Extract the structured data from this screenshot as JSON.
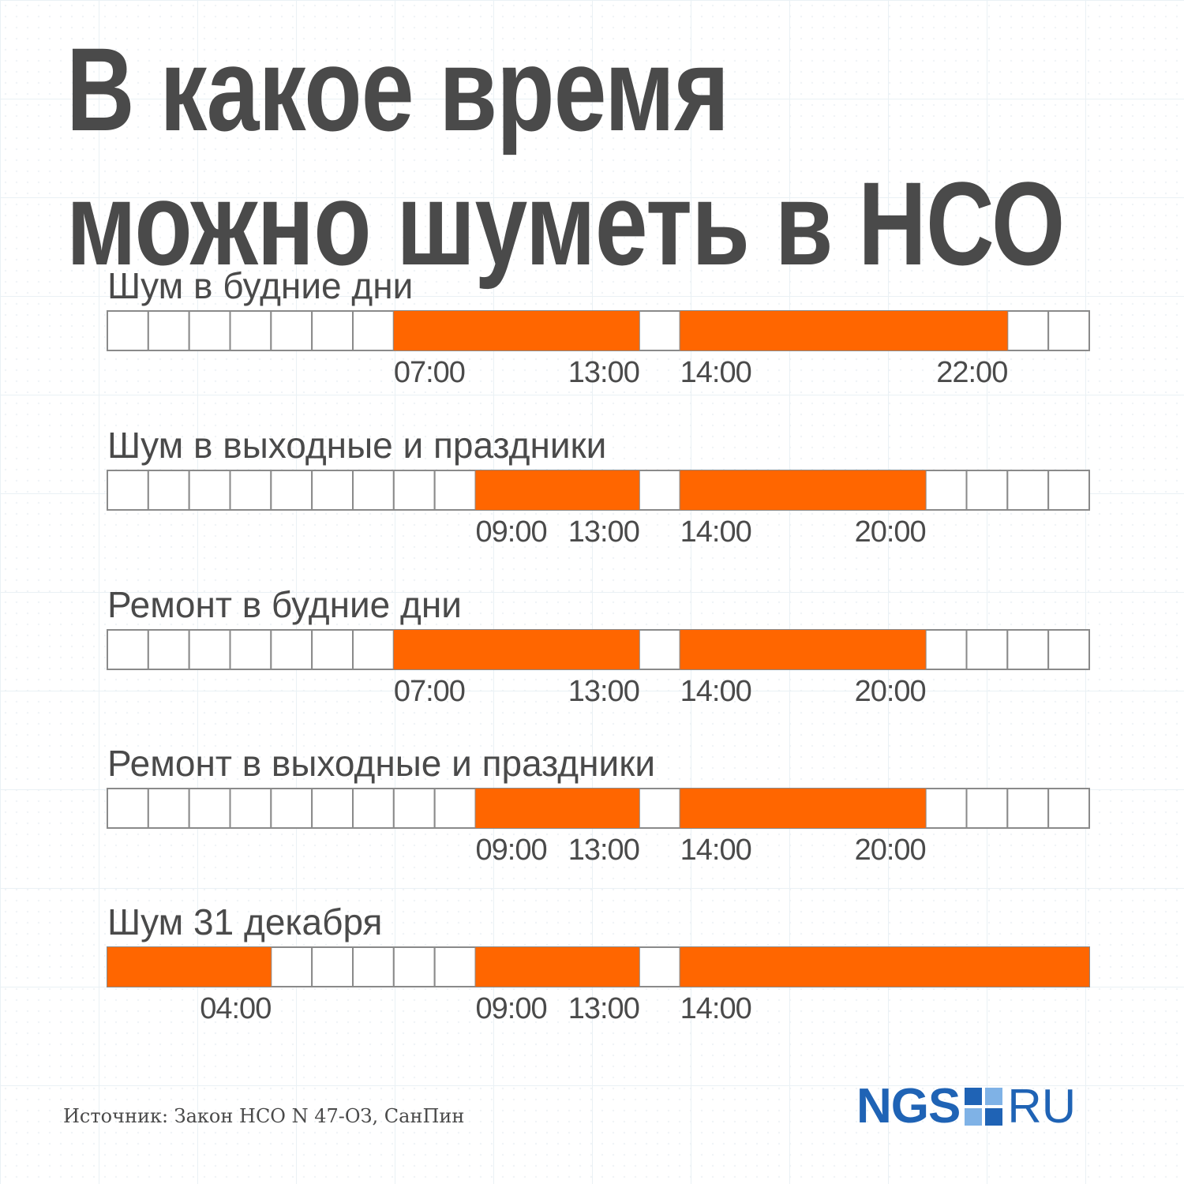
{
  "title": {
    "line1": "В какое время",
    "line2": "можно шуметь в НСО"
  },
  "source": "Источник: Закон НСО N 47-ОЗ, СанПин",
  "logo": {
    "left": "NGS",
    "right": "RU",
    "icon": "ngs-square-icon"
  },
  "colors": {
    "allowed": "#ff6600",
    "cell_border": "#8a8a8a",
    "text": "#4a4a4a",
    "brand": "#1f63b5",
    "brand_light": "#7fb2e6"
  },
  "chart_data": {
    "type": "table",
    "hour_range": [
      0,
      24
    ],
    "rows": [
      {
        "name": "Шум в будние дни",
        "intervals": [
          [
            7,
            13
          ],
          [
            14,
            22
          ]
        ],
        "ticks": [
          {
            "hour": 7,
            "label": "07:00"
          },
          {
            "hour": 13,
            "label": "13:00"
          },
          {
            "hour": 14,
            "label": "14:00"
          },
          {
            "hour": 22,
            "label": "22:00"
          }
        ]
      },
      {
        "name": "Шум в выходные и праздники",
        "intervals": [
          [
            9,
            13
          ],
          [
            14,
            20
          ]
        ],
        "ticks": [
          {
            "hour": 9,
            "label": "09:00"
          },
          {
            "hour": 13,
            "label": "13:00"
          },
          {
            "hour": 14,
            "label": "14:00"
          },
          {
            "hour": 20,
            "label": "20:00"
          }
        ]
      },
      {
        "name": "Ремонт в будние дни",
        "intervals": [
          [
            7,
            13
          ],
          [
            14,
            20
          ]
        ],
        "ticks": [
          {
            "hour": 7,
            "label": "07:00"
          },
          {
            "hour": 13,
            "label": "13:00"
          },
          {
            "hour": 14,
            "label": "14:00"
          },
          {
            "hour": 20,
            "label": "20:00"
          }
        ]
      },
      {
        "name": "Ремонт в выходные и праздники",
        "intervals": [
          [
            9,
            13
          ],
          [
            14,
            20
          ]
        ],
        "ticks": [
          {
            "hour": 9,
            "label": "09:00"
          },
          {
            "hour": 13,
            "label": "13:00"
          },
          {
            "hour": 14,
            "label": "14:00"
          },
          {
            "hour": 20,
            "label": "20:00"
          }
        ]
      },
      {
        "name": "Шум 31 декабря",
        "intervals": [
          [
            0,
            4
          ],
          [
            9,
            13
          ],
          [
            14,
            24
          ]
        ],
        "ticks": [
          {
            "hour": 4,
            "label": "04:00"
          },
          {
            "hour": 9,
            "label": "09:00"
          },
          {
            "hour": 13,
            "label": "13:00"
          },
          {
            "hour": 14,
            "label": "14:00"
          }
        ]
      }
    ]
  }
}
